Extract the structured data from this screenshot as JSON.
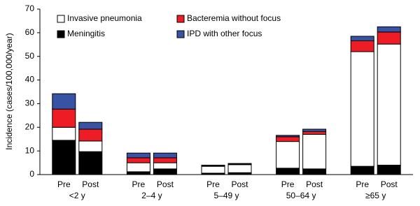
{
  "chart_data": {
    "type": "stacked_bar",
    "y_label": "Incidence (cases/100,000/year)",
    "categories": [
      "Pre",
      "Post",
      "Pre",
      "Post",
      "Pre",
      "Post",
      "Pre",
      "Post",
      "Pre",
      "Post"
    ],
    "groups": [
      "<2 y",
      "2–4 y",
      "5–49 y",
      "50–64 y",
      "≥65 y"
    ],
    "series": [
      {
        "name": "Meningitis",
        "color": "#000000",
        "values": [
          14.5,
          9.7,
          1.2,
          2.4,
          0.6,
          0.8,
          2.7,
          2.4,
          3.5,
          4.0
        ]
      },
      {
        "name": "Invasive pneumonia",
        "color": "#ffffff",
        "values": [
          5.5,
          4.5,
          3.8,
          2.6,
          2.9,
          3.4,
          11.3,
          14.6,
          48.5,
          51.2
        ]
      },
      {
        "name": "Bacteremia without focus",
        "color": "#ee1c25",
        "values": [
          7.7,
          5.0,
          2.1,
          2.1,
          0.2,
          0.2,
          2.0,
          1.2,
          4.6,
          5.1
        ]
      },
      {
        "name": "IPD with other focus",
        "color": "#3953a4",
        "values": [
          6.5,
          2.9,
          2.0,
          2.0,
          0.3,
          0.3,
          0.6,
          1.0,
          1.9,
          2.2
        ]
      }
    ],
    "ylim": [
      0,
      70
    ],
    "yticks": [
      0,
      10,
      20,
      30,
      40,
      50,
      60,
      70
    ],
    "grid": false
  }
}
